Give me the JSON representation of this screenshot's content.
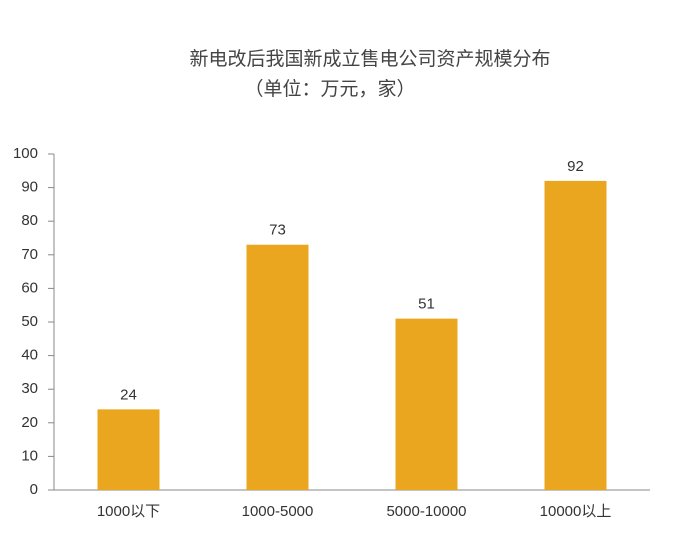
{
  "chart_data": {
    "type": "bar",
    "title": "新电改后我国新成立售电公司资产规模分布",
    "subtitle": "（单位：万元，家）",
    "categories": [
      "1000以下",
      "1000-5000",
      "5000-10000",
      "10000以上"
    ],
    "values": [
      24,
      73,
      51,
      92
    ],
    "color": "#eba61f",
    "ylim": [
      0,
      100
    ],
    "yticks": [
      0,
      10,
      20,
      30,
      40,
      50,
      60,
      70,
      80,
      90,
      100
    ],
    "grid": false,
    "data_labels": true
  }
}
